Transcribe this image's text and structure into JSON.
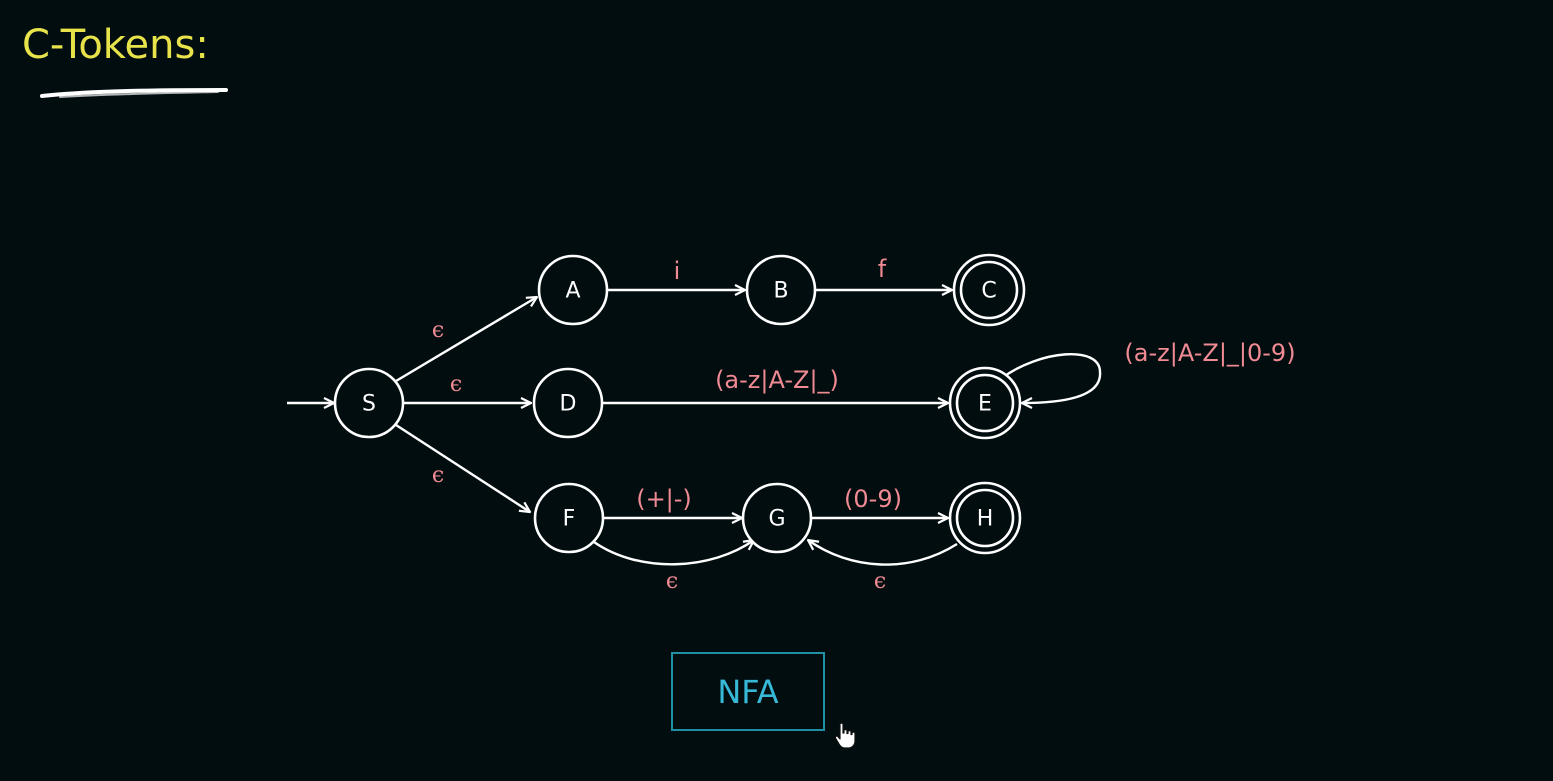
{
  "title": "C-Tokens:",
  "colors": {
    "background": "#020d10",
    "title": "#e8e34a",
    "state_stroke": "#ffffff",
    "edge_label": "#f08a93",
    "nfa_box": "#1f8fa6"
  },
  "states": {
    "S": "S",
    "A": "A",
    "B": "B",
    "C": "C",
    "D": "D",
    "E": "E",
    "F": "F",
    "G": "G",
    "H": "H"
  },
  "transitions": {
    "s_a": "ϵ",
    "s_d": "ϵ",
    "s_f": "ϵ",
    "a_b": "i",
    "b_c": "f",
    "d_e": "(a-z|A-Z|_)",
    "e_loop": "(a-z|A-Z|_|0-9)",
    "f_g": "(+|-)",
    "f_g_eps": "ϵ",
    "g_h": "(0-9)",
    "h_g_eps": "ϵ"
  },
  "button": {
    "label": "NFA"
  },
  "icons": {
    "cursor": "hand-pointer-icon"
  }
}
